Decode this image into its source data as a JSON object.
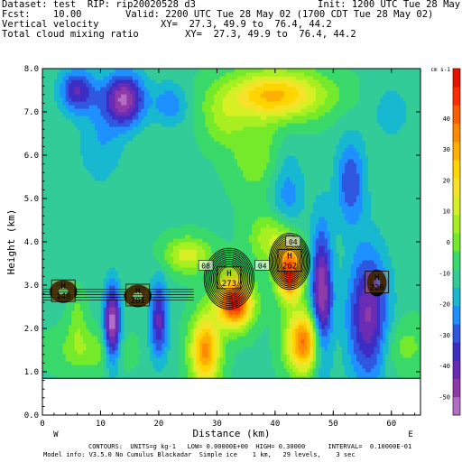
{
  "header": {
    "dataset_line": "Dataset: test  RIP: rip20020528 d3",
    "init_line": "Init: 1200 UTC Tue 28 May 02",
    "fcst_line": "Fcst:    10.00",
    "valid_line": "Valid: 2200 UTC Tue 28 May 02 (1700 CDT Tue 28 May 02)",
    "field1_line": "Vertical velocity",
    "xy1_line": "XY=  27.3, 49.9 to  76.4, 44.2",
    "field2_line": "Total cloud mixing ratio",
    "xy2_line": "XY=  27.3, 49.9 to  76.4, 44.2"
  },
  "footer": {
    "contours_line": "CONTOURS:  UNITS=g kg-1   LOW= 0.00000E+00  HIGH= 0.30000      INTERVAL=  0.10000E-01",
    "model_line": "Model info: V3.5.0 No Cumulus Blackadar  Simple ice    1 km,   29 levels,    3 sec"
  },
  "chart_data": {
    "type": "heatmap",
    "xlabel": "Distance (km)",
    "ylabel": "Height (km)",
    "xlim": [
      0,
      65
    ],
    "ylim": [
      0,
      8
    ],
    "x_ticks": [
      0,
      10,
      20,
      30,
      40,
      50,
      60
    ],
    "y_ticks": [
      "0.0",
      "1.0",
      "2.0",
      "3.0",
      "4.0",
      "5.0",
      "6.0",
      "7.0",
      "8.0"
    ],
    "x_end_labels": {
      "left": "W",
      "right": "E"
    },
    "colorbar": {
      "units": "cm s-1",
      "labels": [
        "40",
        "30",
        "20",
        "10",
        "0",
        "-10",
        "-20",
        "-30",
        "-40",
        "-50"
      ],
      "label_values": [
        40,
        30,
        20,
        10,
        0,
        -10,
        -20,
        -30,
        -40,
        -50
      ],
      "range": [
        -56,
        56
      ]
    },
    "terrain_top_km": 0.85,
    "cloud_markers": [
      {
        "x": 3.6,
        "y": 2.85,
        "letter": "H",
        "value": "149"
      },
      {
        "x": 16.4,
        "y": 2.75,
        "letter": "H",
        "value": "201"
      },
      {
        "x": 32.1,
        "y": 3.15,
        "letter": "H",
        "value": "273"
      },
      {
        "x": 42.5,
        "y": 3.55,
        "letter": "H",
        "value": "262"
      },
      {
        "x": 57.5,
        "y": 3.05,
        "letter": "H",
        "value": "226"
      }
    ],
    "contour_labels": [
      {
        "x": 28.1,
        "y": 3.45,
        "text": "08"
      },
      {
        "x": 37.8,
        "y": 3.45,
        "text": "04"
      },
      {
        "x": 43.1,
        "y": 4.0,
        "text": "04"
      }
    ],
    "w_field": {
      "units": "cm s-1",
      "background": -10,
      "features": [
        {
          "x": 33,
          "y": 2.6,
          "sx": 3.0,
          "sy": 0.55,
          "amp": 62
        },
        {
          "x": 28,
          "y": 1.5,
          "sx": 2.5,
          "sy": 0.8,
          "amp": 45
        },
        {
          "x": 42.5,
          "y": 3.3,
          "sx": 2.2,
          "sy": 0.6,
          "amp": 60
        },
        {
          "x": 45,
          "y": 1.7,
          "sx": 3.0,
          "sy": 0.7,
          "amp": 50
        },
        {
          "x": 40,
          "y": 4.1,
          "sx": 4.0,
          "sy": 0.6,
          "amp": 22
        },
        {
          "x": 40,
          "y": 7.4,
          "sx": 8.5,
          "sy": 0.55,
          "amp": 38
        },
        {
          "x": 37,
          "y": 6.0,
          "sx": 4.5,
          "sy": 0.9,
          "amp": 12
        },
        {
          "x": 31,
          "y": 6.8,
          "sx": 3.5,
          "sy": 0.6,
          "amp": 12
        },
        {
          "x": 42,
          "y": 5.0,
          "sx": 3.0,
          "sy": 1.2,
          "amp": -15
        },
        {
          "x": 48,
          "y": 2.7,
          "sx": 1.8,
          "sy": 1.6,
          "amp": -42
        },
        {
          "x": 56,
          "y": 2.3,
          "sx": 3.5,
          "sy": 1.5,
          "amp": -35
        },
        {
          "x": 53,
          "y": 5.4,
          "sx": 2.5,
          "sy": 1.0,
          "amp": -22
        },
        {
          "x": 12,
          "y": 2.1,
          "sx": 1.4,
          "sy": 0.9,
          "amp": -45
        },
        {
          "x": 20,
          "y": 2.2,
          "sx": 1.6,
          "sy": 0.9,
          "amp": -30
        },
        {
          "x": 6,
          "y": 2.2,
          "sx": 1.5,
          "sy": 0.6,
          "amp": 10
        },
        {
          "x": 14,
          "y": 7.3,
          "sx": 3.5,
          "sy": 0.6,
          "amp": -40
        },
        {
          "x": 6,
          "y": 7.5,
          "sx": 3.0,
          "sy": 0.5,
          "amp": -28
        },
        {
          "x": 10,
          "y": 6.3,
          "sx": 4.0,
          "sy": 1.0,
          "amp": -10
        },
        {
          "x": 22,
          "y": 7.2,
          "sx": 3.0,
          "sy": 0.5,
          "amp": -15
        },
        {
          "x": 60,
          "y": 7.0,
          "sx": 3.5,
          "sy": 0.7,
          "amp": -8
        },
        {
          "x": 25,
          "y": 3.7,
          "sx": 4.0,
          "sy": 0.4,
          "amp": 22
        },
        {
          "x": 8,
          "y": 1.5,
          "sx": 6.0,
          "sy": 0.5,
          "amp": 12
        },
        {
          "x": 62,
          "y": 1.6,
          "sx": 4.0,
          "sy": 0.6,
          "amp": 10
        }
      ]
    }
  },
  "colors": {
    "scale": [
      "#b36dc2",
      "#8e3aa8",
      "#6a2cb4",
      "#3c2dc4",
      "#2f57e0",
      "#1e90ff",
      "#17b8d0",
      "#33cc99",
      "#39d96a",
      "#75ea2b",
      "#a8ef22",
      "#d6f025",
      "#f4e32a",
      "#ffd500",
      "#ffaf00",
      "#ff8a00",
      "#ff5e00",
      "#ff2d00",
      "#e81200"
    ],
    "terrain": "#ffffff",
    "contour": "#000000",
    "marker_fill": "#ff9000"
  }
}
